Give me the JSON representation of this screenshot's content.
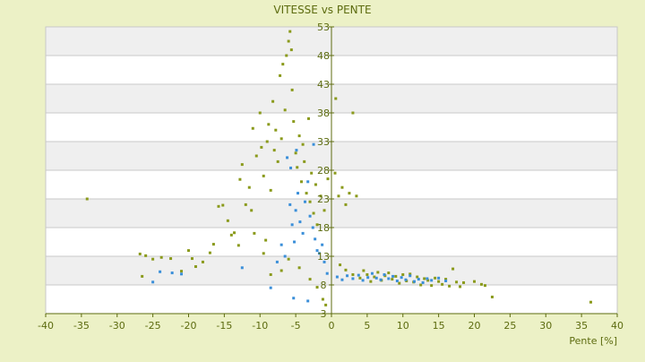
{
  "chart_data": {
    "type": "scatter",
    "title": "VITESSE vs PENTE",
    "xlabel": "Pente [%]",
    "ylabel": "",
    "xlim": [
      -40,
      40
    ],
    "ylim": [
      3,
      53
    ],
    "x_ticks": [
      -40,
      -35,
      -30,
      -25,
      -20,
      -15,
      -10,
      -5,
      0,
      5,
      10,
      15,
      20,
      25,
      30,
      35,
      40
    ],
    "y_ticks": [
      3,
      8,
      13,
      18,
      23,
      28,
      33,
      38,
      43,
      48,
      53
    ],
    "grid": true,
    "legend": "none",
    "series": [
      {
        "color": "#8a9a1b",
        "points": [
          [
            -34.2,
            23.0
          ],
          [
            -26.8,
            13.4
          ],
          [
            -26.0,
            13.1
          ],
          [
            -26.5,
            9.5
          ],
          [
            -25.0,
            12.5
          ],
          [
            -23.8,
            12.8
          ],
          [
            -22.5,
            12.6
          ],
          [
            -21.0,
            10.4
          ],
          [
            -20.0,
            14.0
          ],
          [
            -19.5,
            12.6
          ],
          [
            -19.0,
            11.2
          ],
          [
            -18.0,
            12.0
          ],
          [
            -17.0,
            13.6
          ],
          [
            -16.5,
            15.1
          ],
          [
            -15.8,
            21.7
          ],
          [
            -15.2,
            21.9
          ],
          [
            -14.5,
            19.2
          ],
          [
            -14.0,
            16.7
          ],
          [
            -13.6,
            17.1
          ],
          [
            -13.0,
            14.9
          ],
          [
            -12.8,
            26.4
          ],
          [
            -12.5,
            29.0
          ],
          [
            -12.0,
            22.0
          ],
          [
            -11.5,
            25.0
          ],
          [
            -11.0,
            35.3
          ],
          [
            -10.5,
            30.5
          ],
          [
            -10.0,
            38.0
          ],
          [
            -9.8,
            32.0
          ],
          [
            -9.5,
            27.0
          ],
          [
            -9.0,
            33.0
          ],
          [
            -8.8,
            36.0
          ],
          [
            -8.5,
            24.5
          ],
          [
            -8.2,
            40.0
          ],
          [
            -8.0,
            31.5
          ],
          [
            -7.8,
            35.0
          ],
          [
            -7.5,
            29.5
          ],
          [
            -7.2,
            44.5
          ],
          [
            -7.0,
            33.5
          ],
          [
            -6.8,
            46.5
          ],
          [
            -6.5,
            38.5
          ],
          [
            -6.3,
            48.0
          ],
          [
            -6.0,
            50.5
          ],
          [
            -5.8,
            52.2
          ],
          [
            -5.6,
            49.0
          ],
          [
            -5.5,
            42.0
          ],
          [
            -5.3,
            36.5
          ],
          [
            -5.0,
            31.0
          ],
          [
            -4.8,
            28.5
          ],
          [
            -4.5,
            34.0
          ],
          [
            -4.2,
            26.0
          ],
          [
            -4.0,
            32.5
          ],
          [
            -3.8,
            29.5
          ],
          [
            -3.5,
            24.0
          ],
          [
            -3.2,
            37.0
          ],
          [
            -3.0,
            22.5
          ],
          [
            -2.8,
            27.5
          ],
          [
            -2.5,
            20.5
          ],
          [
            -2.2,
            25.5
          ],
          [
            -2.0,
            18.5
          ],
          [
            -1.5,
            23.5
          ],
          [
            -1.0,
            21.0
          ],
          [
            -0.5,
            26.5
          ],
          [
            0.5,
            27.5
          ],
          [
            1.0,
            23.5
          ],
          [
            1.5,
            25.0
          ],
          [
            2.0,
            22.0
          ],
          [
            2.5,
            24.0
          ],
          [
            3.0,
            38.0
          ],
          [
            0.6,
            40.5
          ],
          [
            3.5,
            23.5
          ],
          [
            -6.0,
            12.5
          ],
          [
            -7.0,
            10.5
          ],
          [
            -8.5,
            9.8
          ],
          [
            -9.5,
            13.5
          ],
          [
            -4.5,
            11.0
          ],
          [
            -3.0,
            9.0
          ],
          [
            -2.0,
            7.6
          ],
          [
            -1.2,
            5.5
          ],
          [
            -0.8,
            4.5
          ],
          [
            -11.2,
            21.0
          ],
          [
            -10.8,
            17.0
          ],
          [
            -9.2,
            15.8
          ],
          [
            1.2,
            11.5
          ],
          [
            2.0,
            10.6
          ],
          [
            3.0,
            9.8
          ],
          [
            4.0,
            9.2
          ],
          [
            4.5,
            10.5
          ],
          [
            5.0,
            9.8
          ],
          [
            5.5,
            8.6
          ],
          [
            6.0,
            9.4
          ],
          [
            6.5,
            10.2
          ],
          [
            7.0,
            8.8
          ],
          [
            7.5,
            9.6
          ],
          [
            8.0,
            10.1
          ],
          [
            8.5,
            9.0
          ],
          [
            9.0,
            9.5
          ],
          [
            9.5,
            8.3
          ],
          [
            10.0,
            9.8
          ],
          [
            10.5,
            8.7
          ],
          [
            11.0,
            9.9
          ],
          [
            11.5,
            8.5
          ],
          [
            12.0,
            9.4
          ],
          [
            12.5,
            8.0
          ],
          [
            13.0,
            9.1
          ],
          [
            13.5,
            8.8
          ],
          [
            14.0,
            7.9
          ],
          [
            14.5,
            9.2
          ],
          [
            15.0,
            8.6
          ],
          [
            15.5,
            8.1
          ],
          [
            16.0,
            9.0
          ],
          [
            16.5,
            7.8
          ],
          [
            17.0,
            10.8
          ],
          [
            17.5,
            8.5
          ],
          [
            18.0,
            7.7
          ],
          [
            18.5,
            8.4
          ],
          [
            20.0,
            8.6
          ],
          [
            21.0,
            8.1
          ],
          [
            21.5,
            7.9
          ],
          [
            22.5,
            5.9
          ],
          [
            36.3,
            5.0
          ]
        ]
      },
      {
        "color": "#3b8fd9",
        "points": [
          [
            -25.0,
            8.5
          ],
          [
            -24.0,
            10.3
          ],
          [
            -22.3,
            10.1
          ],
          [
            -21.0,
            9.9
          ],
          [
            -12.5,
            11.0
          ],
          [
            -8.5,
            7.5
          ],
          [
            -7.6,
            12.0
          ],
          [
            -7.0,
            15.0
          ],
          [
            -6.5,
            13.0
          ],
          [
            -5.8,
            22.0
          ],
          [
            -5.5,
            18.5
          ],
          [
            -5.2,
            15.5
          ],
          [
            -5.0,
            21.0
          ],
          [
            -4.7,
            24.0
          ],
          [
            -4.4,
            19.0
          ],
          [
            -4.0,
            17.0
          ],
          [
            -3.7,
            22.5
          ],
          [
            -3.3,
            26.0
          ],
          [
            -3.0,
            20.0
          ],
          [
            -2.6,
            18.0
          ],
          [
            -2.3,
            16.0
          ],
          [
            -2.0,
            14.0
          ],
          [
            -1.7,
            13.5
          ],
          [
            -1.3,
            15.0
          ],
          [
            -1.0,
            12.0
          ],
          [
            -0.6,
            10.0
          ],
          [
            -5.3,
            5.7
          ],
          [
            -3.3,
            5.2
          ],
          [
            -6.2,
            30.2
          ],
          [
            -5.7,
            28.4
          ],
          [
            -4.9,
            31.5
          ],
          [
            -2.5,
            32.5
          ],
          [
            0.8,
            9.4
          ],
          [
            1.5,
            8.9
          ],
          [
            2.2,
            9.6
          ],
          [
            3.0,
            9.1
          ],
          [
            3.8,
            9.7
          ],
          [
            4.4,
            8.8
          ],
          [
            5.1,
            9.3
          ],
          [
            5.7,
            10.0
          ],
          [
            6.3,
            9.2
          ],
          [
            6.9,
            8.9
          ],
          [
            7.4,
            9.8
          ],
          [
            8.0,
            9.1
          ],
          [
            8.6,
            9.5
          ],
          [
            9.2,
            8.7
          ],
          [
            9.8,
            9.3
          ],
          [
            10.4,
            8.9
          ],
          [
            11.0,
            9.6
          ],
          [
            11.6,
            8.6
          ],
          [
            12.2,
            9.0
          ],
          [
            12.8,
            8.4
          ],
          [
            13.4,
            9.1
          ],
          [
            14.0,
            8.8
          ],
          [
            15.0,
            9.2
          ],
          [
            16.0,
            8.7
          ]
        ]
      }
    ]
  }
}
